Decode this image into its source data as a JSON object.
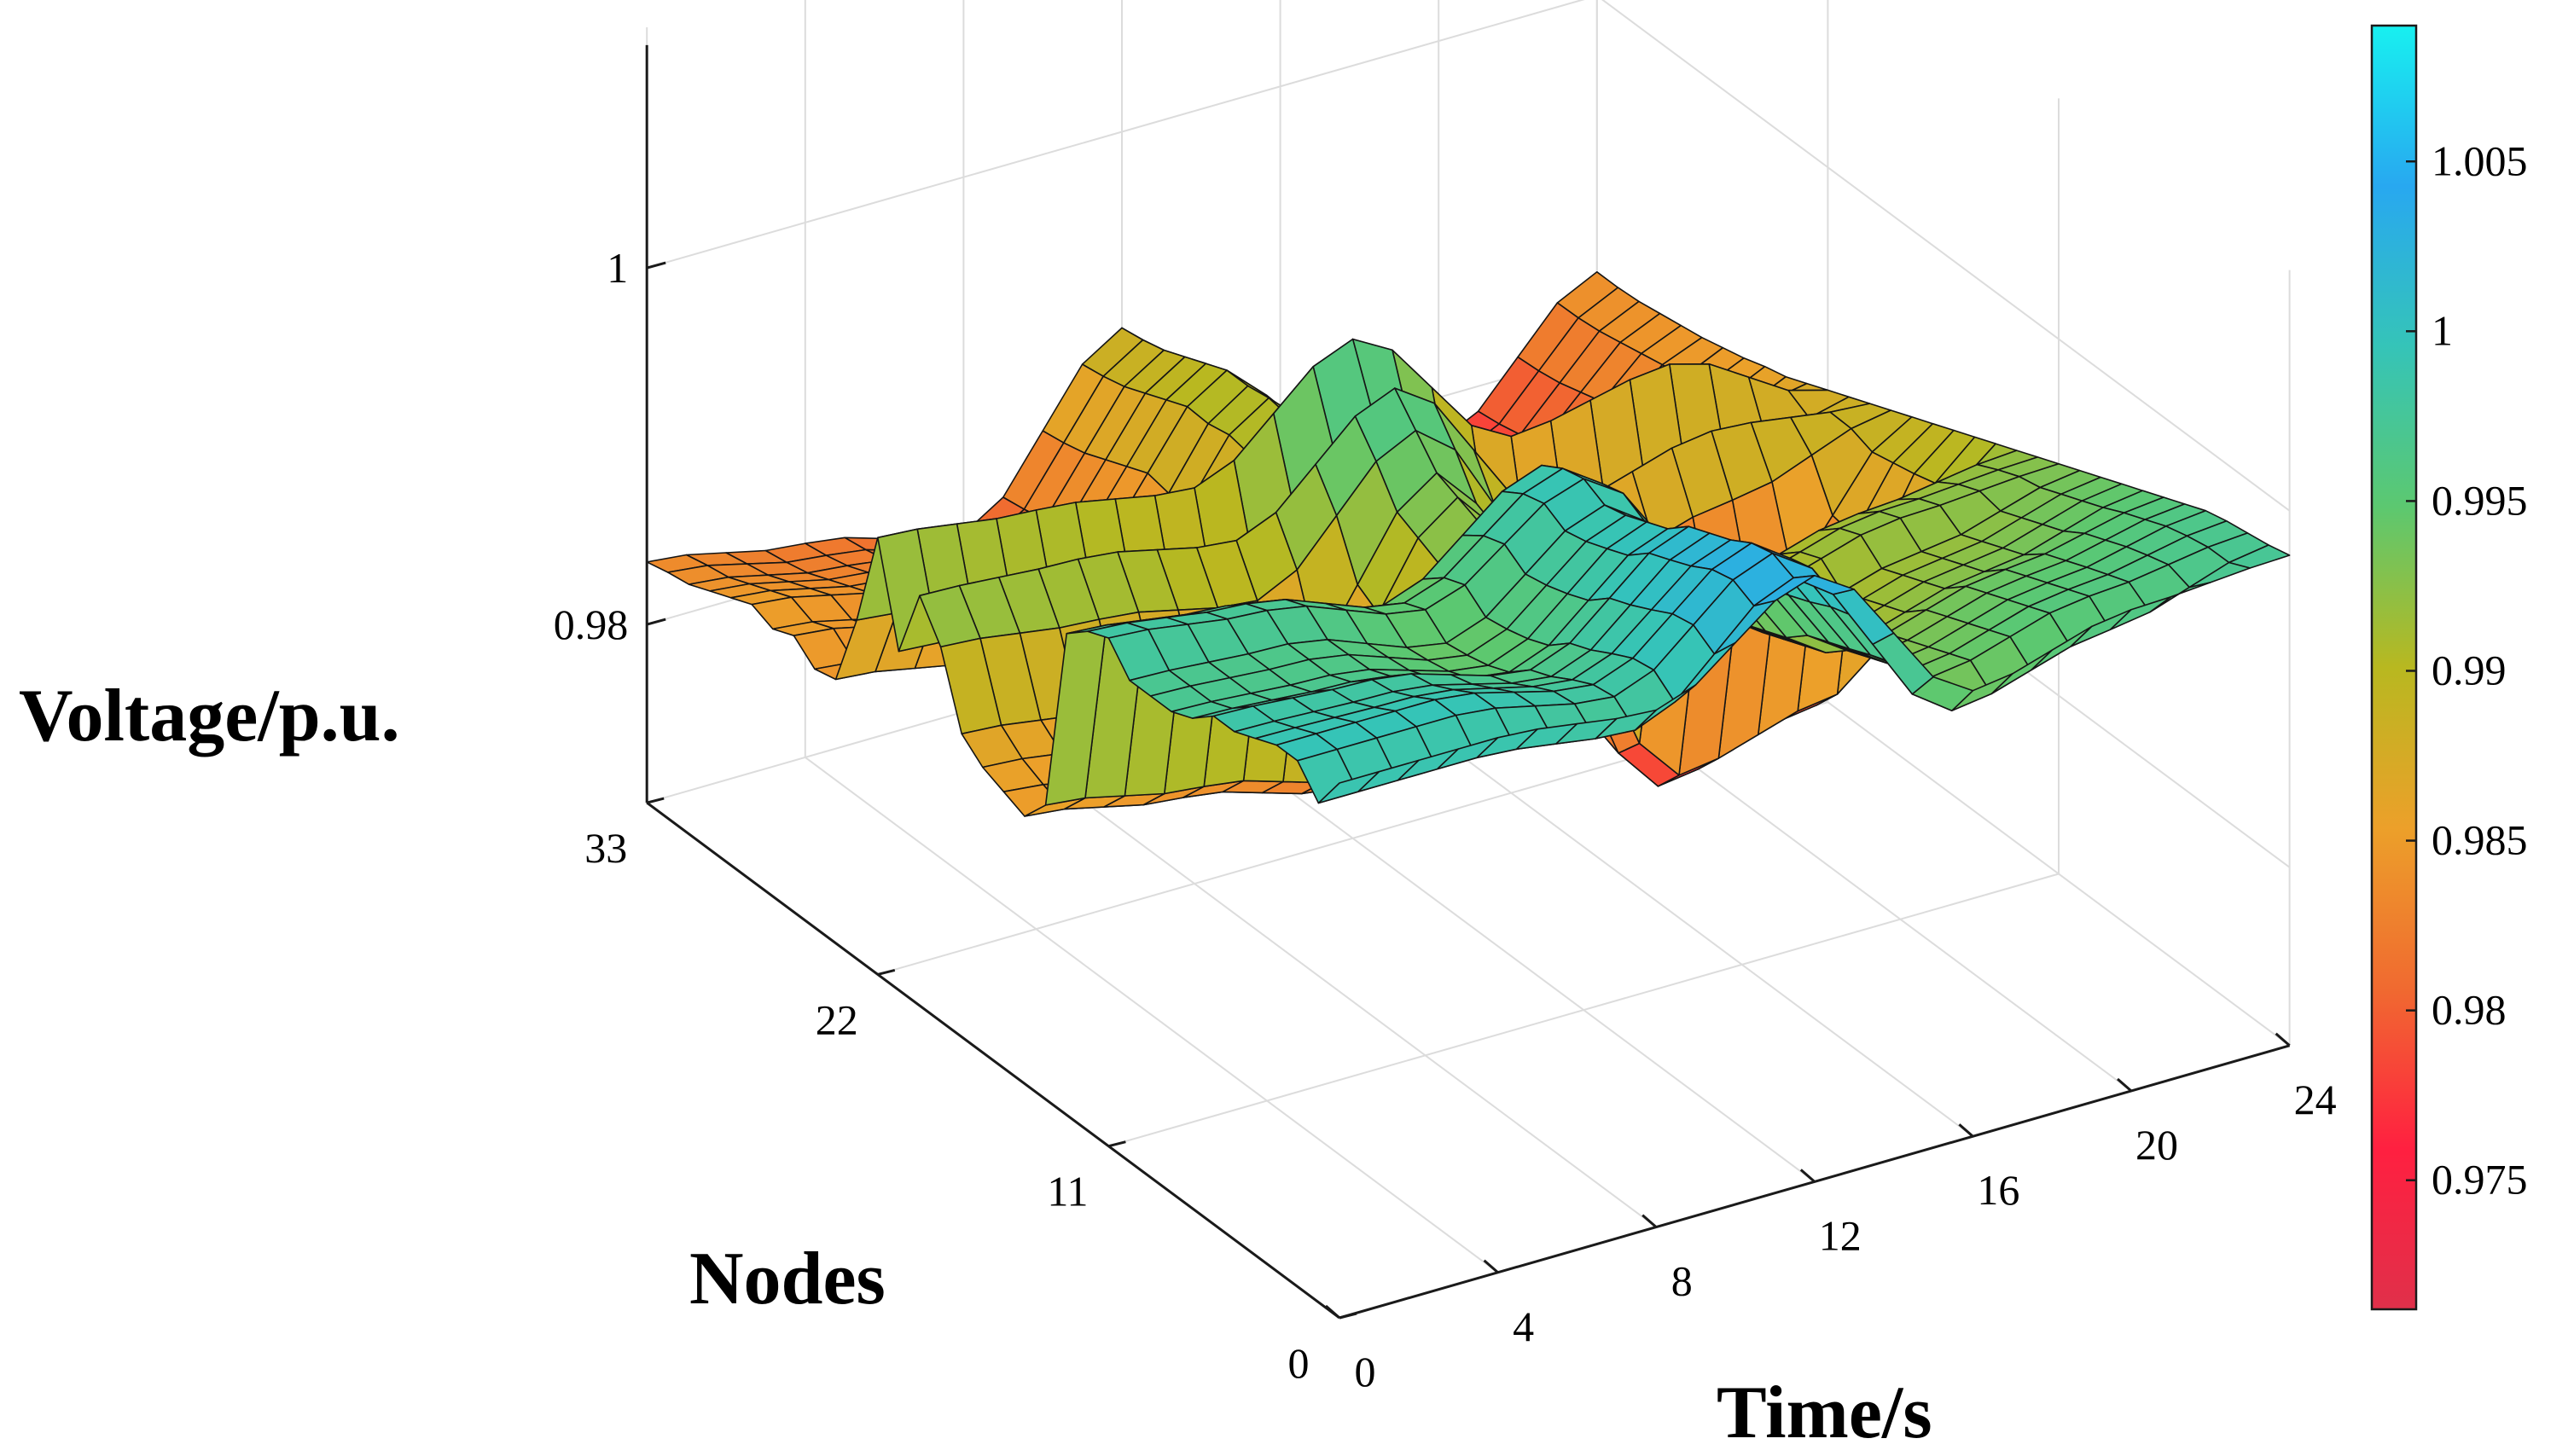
{
  "chart_data": {
    "type": "surface3d",
    "zlabel": "Voltage/p.u.",
    "ylabel": "Nodes",
    "xlabel": "Time/s",
    "x_ticks": [
      "0",
      "4",
      "8",
      "12",
      "16",
      "20",
      "24"
    ],
    "y_ticks": [
      "0",
      "11",
      "22",
      "33"
    ],
    "z_ticks": [
      "0.98",
      "1"
    ],
    "xlim": [
      0,
      24
    ],
    "ylim": [
      0,
      33
    ],
    "zlim": [
      0.97,
      1.013
    ],
    "grid": true,
    "colorbar": {
      "position": "right",
      "ticks": [
        "1.005",
        "1",
        "0.995",
        "0.99",
        "0.985",
        "0.98",
        "0.975"
      ],
      "range": [
        0.9712,
        1.009
      ],
      "colors": [
        "#e0304a",
        "#ff2040",
        "#f06a30",
        "#eca02a",
        "#b8b820",
        "#5cc870",
        "#35c4b8",
        "#28a8f0",
        "#18f0f0"
      ]
    },
    "series": [
      {
        "x": 0,
        "values": [
          1.0,
          0.998,
          0.9995,
          0.9995,
          0.999,
          0.9985,
          0.9985,
          0.9975,
          0.997,
          0.997,
          0.997,
          0.9985,
          0.998,
          0.997,
          0.9865,
          0.985,
          0.9855,
          0.986,
          0.987,
          0.991,
          0.993,
          0.989,
          0.9945,
          0.989,
          0.9848,
          0.9845,
          0.9855,
          0.985,
          0.9855,
          0.985,
          0.9845,
          0.984,
          0.9838,
          0.9835
        ]
      },
      {
        "x": 4,
        "values": [
          1.0,
          0.998,
          0.9995,
          0.9995,
          0.9988,
          0.9982,
          0.998,
          0.997,
          0.9965,
          0.9965,
          0.9965,
          0.9975,
          0.997,
          0.996,
          0.985,
          0.9835,
          0.984,
          0.985,
          0.986,
          0.99,
          0.9925,
          0.988,
          0.9935,
          0.9875,
          0.9835,
          0.983,
          0.984,
          0.9835,
          0.984,
          0.9835,
          0.983,
          0.9825,
          0.9822,
          0.982
        ]
      },
      {
        "x": 8,
        "values": [
          0.999,
          0.997,
          0.998,
          0.9978,
          0.9972,
          0.9965,
          0.996,
          0.995,
          0.9945,
          0.9942,
          0.994,
          0.995,
          0.9945,
          0.9935,
          0.983,
          0.9815,
          0.982,
          0.983,
          0.984,
          0.9885,
          0.991,
          0.9865,
          0.9922,
          0.986,
          0.982,
          0.9815,
          0.982,
          0.9815,
          0.982,
          0.9815,
          0.981,
          0.9805,
          0.9802,
          0.98
        ]
      },
      {
        "x": 12,
        "values": [
          1.004,
          1.003,
          1.0035,
          1.0032,
          1.0025,
          1.002,
          1.0015,
          1.0005,
          1.0,
          0.9995,
          0.9992,
          0.9998,
          0.9995,
          0.9988,
          0.9935,
          0.9925,
          0.993,
          0.9935,
          0.994,
          0.9955,
          0.997,
          0.9945,
          0.998,
          0.994,
          0.9915,
          0.991,
          0.9912,
          0.991,
          0.991,
          0.9905,
          0.99,
          0.9895,
          0.9892,
          0.989
        ]
      },
      {
        "x": 16,
        "values": [
          0.995,
          0.993,
          0.994,
          0.9935,
          0.993,
          0.9925,
          0.992,
          0.991,
          0.9905,
          0.99,
          0.9895,
          0.9905,
          0.99,
          0.989,
          0.978,
          0.9765,
          0.977,
          0.978,
          0.979,
          0.9845,
          0.9875,
          0.9825,
          0.99,
          0.983,
          0.9785,
          0.978,
          0.978,
          0.9775,
          0.978,
          0.9775,
          0.977,
          0.9765,
          0.9762,
          0.976
        ]
      },
      {
        "x": 20,
        "values": [
          0.997,
          0.995,
          0.996,
          0.9955,
          0.995,
          0.9945,
          0.994,
          0.993,
          0.9925,
          0.992,
          0.9915,
          0.9925,
          0.992,
          0.991,
          0.98,
          0.9785,
          0.979,
          0.98,
          0.981,
          0.9865,
          0.9895,
          0.9845,
          0.9915,
          0.9845,
          0.98,
          0.9795,
          0.9795,
          0.979,
          0.9795,
          0.979,
          0.9785,
          0.978,
          0.9777,
          0.9775
        ]
      },
      {
        "x": 24,
        "values": [
          0.9975,
          0.9972,
          0.997,
          0.9968,
          0.9965,
          0.996,
          0.9955,
          0.995,
          0.9945,
          0.994,
          0.9935,
          0.993,
          0.9925,
          0.992,
          0.9915,
          0.991,
          0.9905,
          0.99,
          0.9895,
          0.989,
          0.9885,
          0.988,
          0.9875,
          0.987,
          0.9865,
          0.9862,
          0.9858,
          0.9855,
          0.9852,
          0.985,
          0.9848,
          0.9846,
          0.9845,
          0.9845
        ]
      }
    ]
  }
}
